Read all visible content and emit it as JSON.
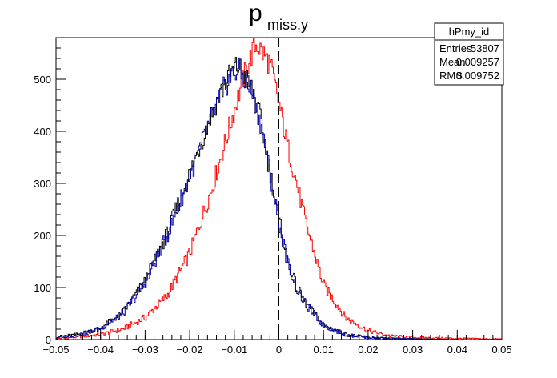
{
  "chart_data": {
    "type": "line",
    "title": "p",
    "title_subscript": "miss,y",
    "xlabel": "",
    "ylabel": "",
    "xlim": [
      -0.05,
      0.05
    ],
    "ylim": [
      0,
      580
    ],
    "x_ticks": [
      -0.05,
      -0.04,
      -0.03,
      -0.02,
      -0.01,
      0,
      0.01,
      0.02,
      0.03,
      0.04,
      0.05
    ],
    "x_tick_labels": [
      "−0.05",
      "−0.04",
      "−0.03",
      "−0.02",
      "−0.01",
      "0",
      "0.01",
      "0.02",
      "0.03",
      "0.04",
      "0.05"
    ],
    "y_ticks": [
      0,
      100,
      200,
      300,
      400,
      500
    ],
    "y_tick_labels": [
      "0",
      "100",
      "200",
      "300",
      "400",
      "500"
    ],
    "grid": false,
    "reference_line_x": 0,
    "series": [
      {
        "color": "#ff0000",
        "x": [
          -0.05,
          -0.045,
          -0.04,
          -0.035,
          -0.03,
          -0.025,
          -0.02,
          -0.015,
          -0.01,
          -0.008,
          -0.006,
          -0.005,
          -0.004,
          -0.002,
          0,
          0.002,
          0.004,
          0.006,
          0.01,
          0.015,
          0.02,
          0.025,
          0.03,
          0.04,
          0.05
        ],
        "values": [
          2,
          5,
          10,
          20,
          42,
          85,
          165,
          290,
          440,
          500,
          550,
          570,
          555,
          530,
          455,
          370,
          300,
          225,
          105,
          42,
          17,
          7,
          4,
          2,
          1
        ]
      },
      {
        "color": "#000000",
        "x": [
          -0.05,
          -0.045,
          -0.04,
          -0.035,
          -0.03,
          -0.025,
          -0.02,
          -0.015,
          -0.012,
          -0.01,
          -0.009,
          -0.008,
          -0.006,
          -0.004,
          -0.002,
          0,
          0.002,
          0.004,
          0.006,
          0.01,
          0.015,
          0.02,
          0.025,
          0.03,
          0.04,
          0.05
        ],
        "values": [
          5,
          10,
          22,
          52,
          112,
          205,
          318,
          435,
          495,
          520,
          525,
          510,
          480,
          420,
          325,
          230,
          150,
          100,
          70,
          28,
          10,
          4,
          2,
          1,
          0,
          0
        ]
      },
      {
        "color": "#0000aa",
        "x": [
          -0.05,
          -0.045,
          -0.04,
          -0.035,
          -0.03,
          -0.025,
          -0.02,
          -0.015,
          -0.012,
          -0.01,
          -0.009,
          -0.008,
          -0.006,
          -0.004,
          -0.002,
          0,
          0.002,
          0.004,
          0.006,
          0.01,
          0.015,
          0.02,
          0.025,
          0.03,
          0.04,
          0.05
        ],
        "values": [
          4,
          9,
          21,
          50,
          108,
          200,
          312,
          428,
          488,
          512,
          518,
          504,
          474,
          414,
          320,
          226,
          147,
          98,
          68,
          27,
          9,
          4,
          2,
          1,
          0,
          0
        ]
      }
    ],
    "stats_box": {
      "name": "hPmy_id",
      "rows": [
        {
          "label": "Entries",
          "value": "53807"
        },
        {
          "label": "Mean",
          "value": "−0.009257"
        },
        {
          "label": "RMS",
          "value": "0.009752"
        }
      ]
    }
  }
}
